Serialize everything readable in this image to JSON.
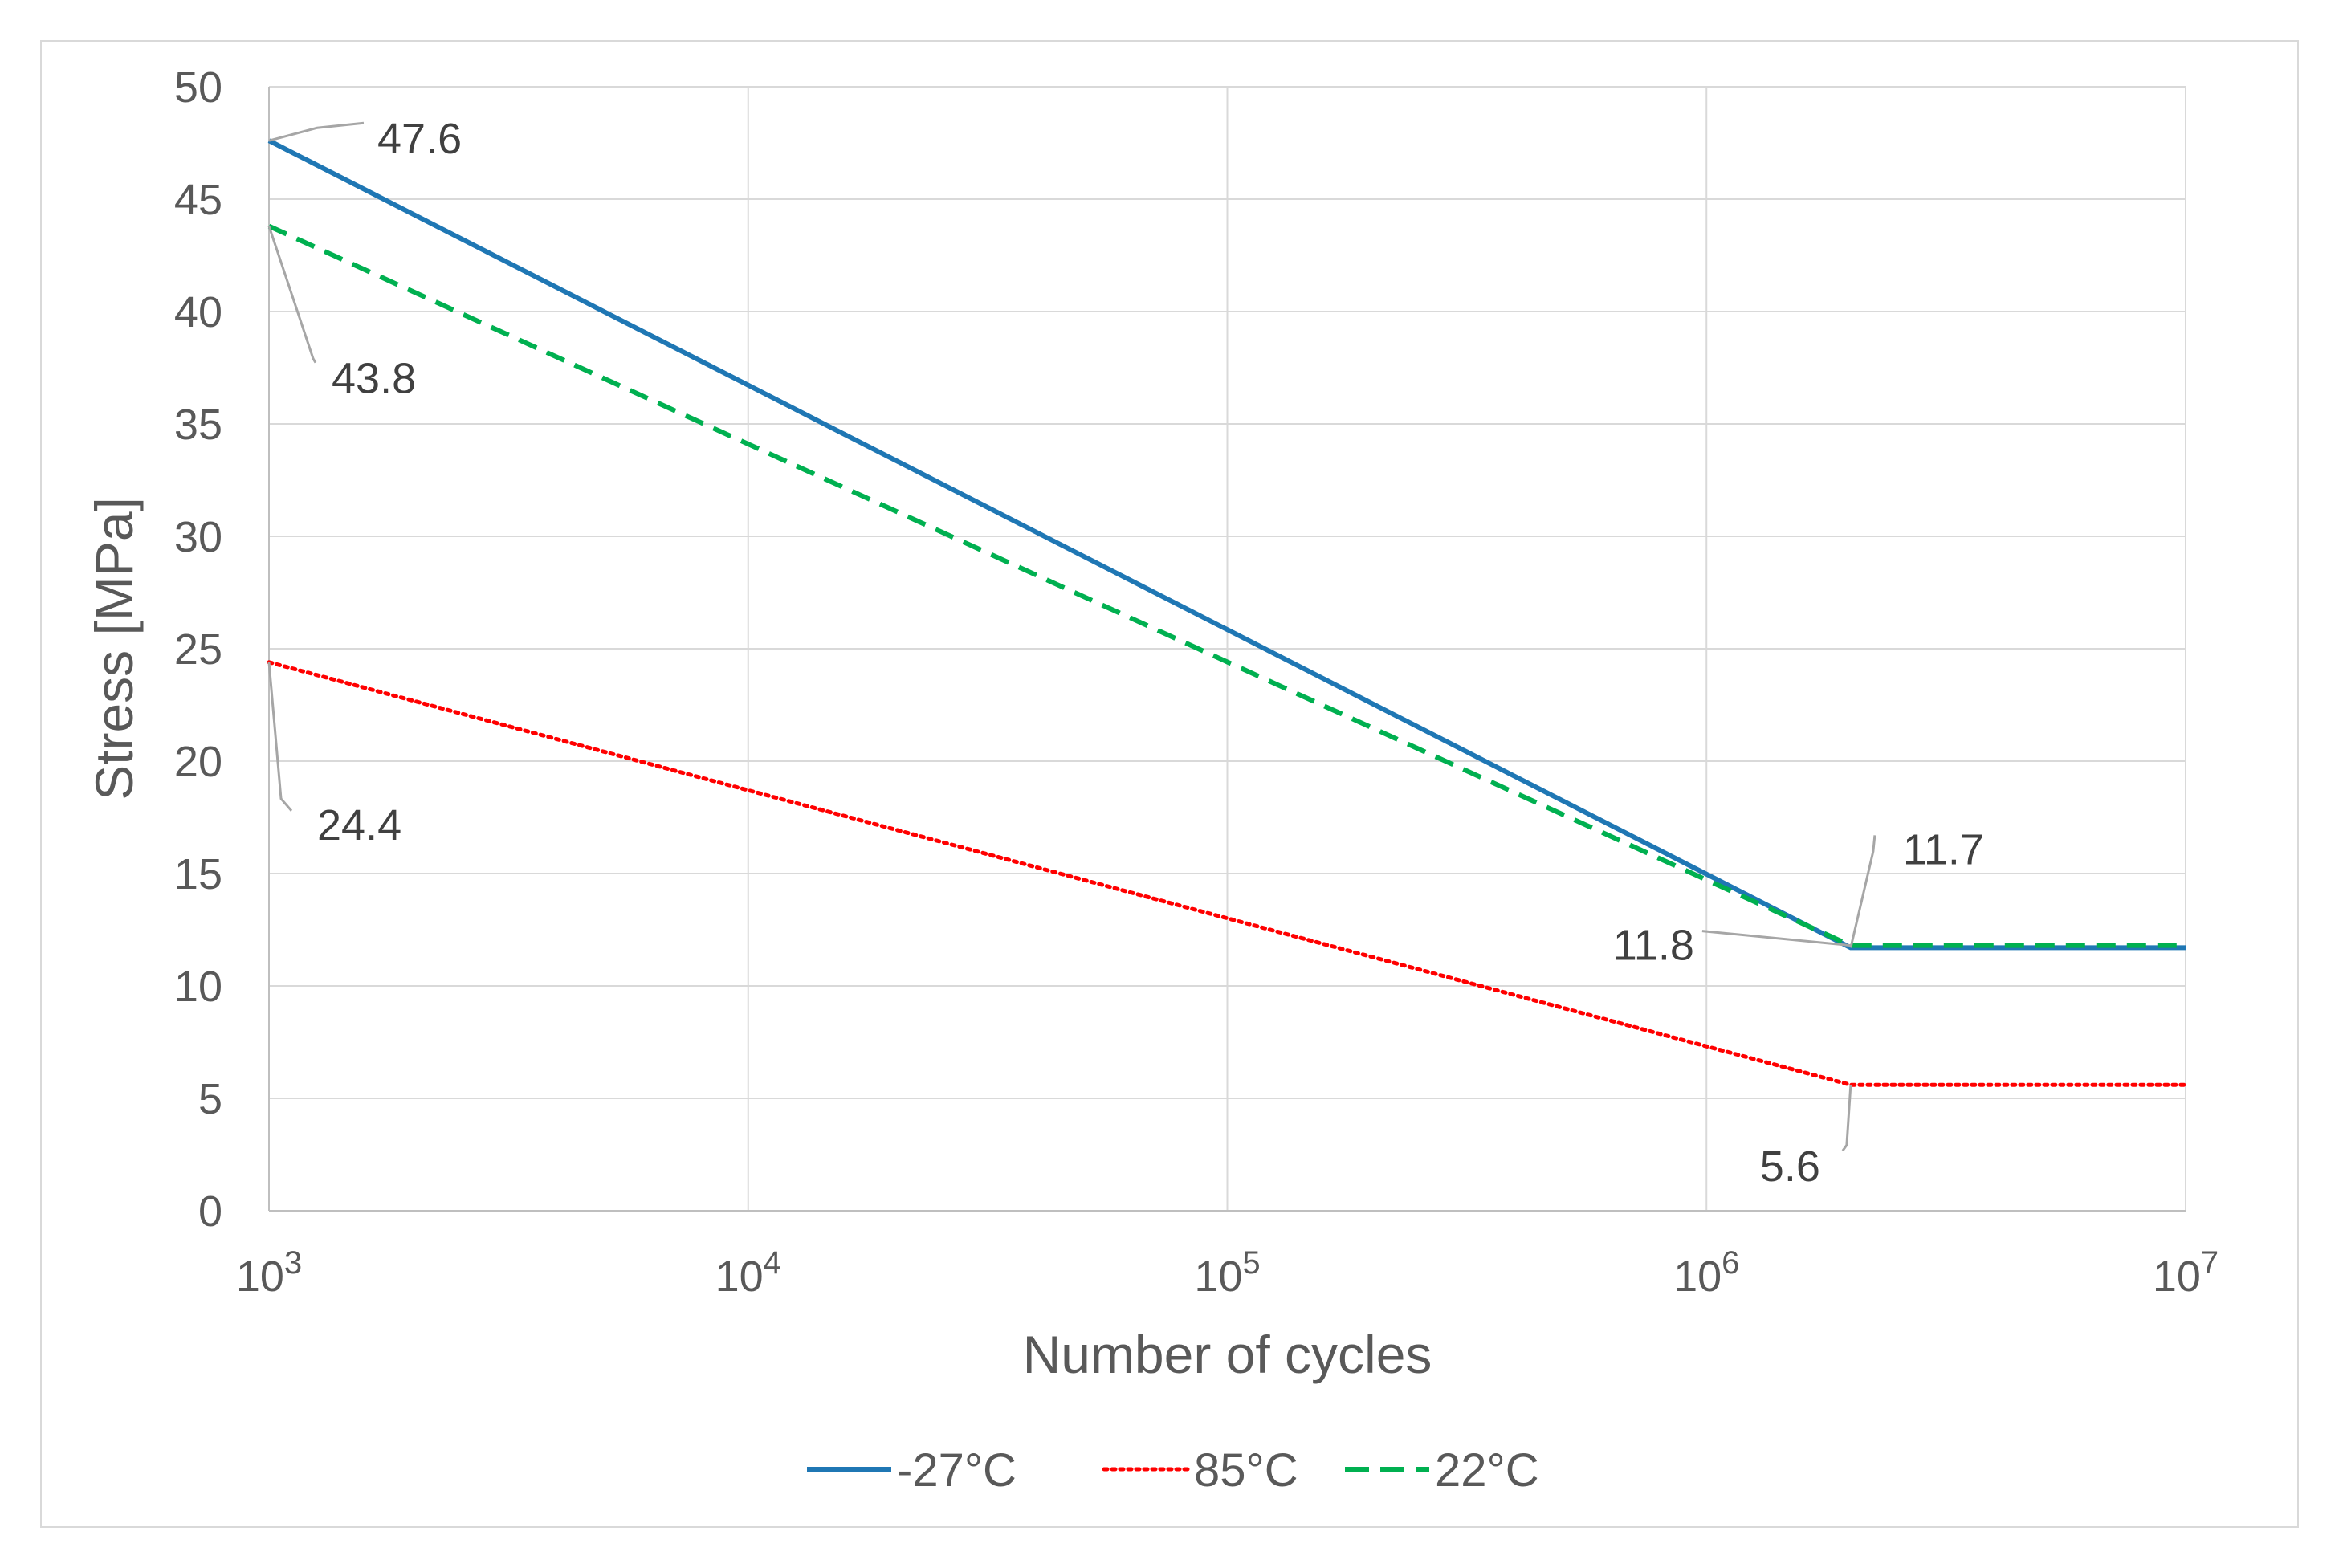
{
  "chart_data": {
    "type": "line",
    "title": "",
    "xlabel": "Number of cycles",
    "ylabel": "Stress [MPa]",
    "x_scale": "log",
    "xlim": [
      1000,
      10000000
    ],
    "ylim": [
      0,
      50
    ],
    "y_ticks": [
      0,
      5,
      10,
      15,
      20,
      25,
      30,
      35,
      40,
      45,
      50
    ],
    "x_ticks": [
      {
        "value": 1000,
        "base": "10",
        "exp": "3"
      },
      {
        "value": 10000,
        "base": "10",
        "exp": "4"
      },
      {
        "value": 100000,
        "base": "10",
        "exp": "5"
      },
      {
        "value": 1000000,
        "base": "10",
        "exp": "6"
      },
      {
        "value": 10000000,
        "base": "10",
        "exp": "7"
      }
    ],
    "grid": true,
    "legend_position": "bottom",
    "series": [
      {
        "name": "-27°C",
        "color": "#1f77b4",
        "style": "solid",
        "points": [
          [
            1000,
            47.6
          ],
          [
            2000000,
            11.7
          ],
          [
            10000000,
            11.7
          ]
        ]
      },
      {
        "name": "85°C",
        "color": "#ff0000",
        "style": "dotted",
        "points": [
          [
            1000,
            24.4
          ],
          [
            2000000,
            5.6
          ],
          [
            10000000,
            5.6
          ]
        ]
      },
      {
        "name": "22°C",
        "color": "#00b050",
        "style": "dashed",
        "points": [
          [
            1000,
            43.8
          ],
          [
            2000000,
            11.8
          ],
          [
            10000000,
            11.8
          ]
        ]
      }
    ],
    "annotations": [
      {
        "text": "47.6",
        "x": 1000,
        "y": 47.6,
        "placement": "upper-right"
      },
      {
        "text": "43.8",
        "x": 1000,
        "y": 43.8,
        "placement": "lower-right"
      },
      {
        "text": "24.4",
        "x": 1000,
        "y": 24.4,
        "placement": "lower-right"
      },
      {
        "text": "11.7",
        "x": 2000000,
        "y": 11.7,
        "placement": "upper-right"
      },
      {
        "text": "11.8",
        "x": 2000000,
        "y": 11.8,
        "placement": "left"
      },
      {
        "text": "5.6",
        "x": 2000000,
        "y": 5.6,
        "placement": "lower-left"
      }
    ]
  }
}
